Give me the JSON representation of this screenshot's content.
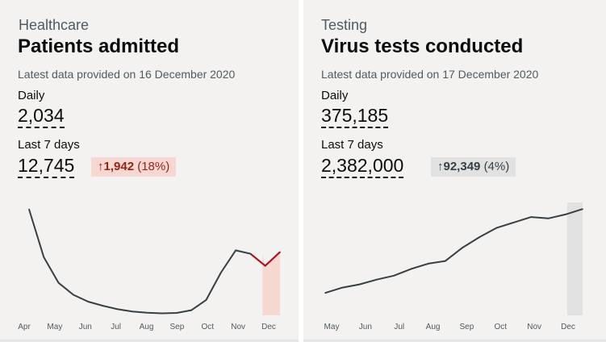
{
  "cards": [
    {
      "category": "Healthcare",
      "title": "Patients admitted",
      "updated": "Latest data provided on 16 December 2020",
      "daily_label": "Daily",
      "daily_value": "2,034",
      "week_label": "Last 7 days",
      "week_value": "12,745",
      "change_arrow": "↑",
      "change_value": "1,942",
      "change_pct": "(18%)",
      "change_color": "#942514",
      "line_color": "#383f43",
      "highlight_line_color": "#b10e1e",
      "highlight_fill": "#f6d7d2"
    },
    {
      "category": "Testing",
      "title": "Virus tests conducted",
      "updated": "Latest data provided on 17 December 2020",
      "daily_label": "Daily",
      "daily_value": "375,185",
      "week_label": "Last 7 days",
      "week_value": "2,382,000",
      "change_arrow": "↑",
      "change_value": "92,349",
      "change_pct": "(4%)",
      "change_color": "#383f43",
      "line_color": "#383f43",
      "highlight_fill": "#e1e1e1"
    }
  ],
  "chart_data": [
    {
      "type": "line",
      "title": "Patients admitted",
      "x_ticks": [
        "Apr",
        "May",
        "Jun",
        "Jul",
        "Aug",
        "Sep",
        "Oct",
        "Nov",
        "Dec"
      ],
      "x": [
        "Apr",
        "Apr",
        "May",
        "May",
        "Jun",
        "Jun",
        "Jul",
        "Jul",
        "Aug",
        "Aug",
        "Sep",
        "Sep",
        "Oct",
        "Oct",
        "Nov",
        "Nov",
        "Dec",
        "Dec"
      ],
      "values": [
        3100,
        1700,
        950,
        600,
        400,
        280,
        180,
        110,
        75,
        60,
        70,
        150,
        450,
        1250,
        1900,
        1800,
        1450,
        1850
      ],
      "ylim": [
        0,
        3300
      ],
      "highlight": "last 7 days"
    },
    {
      "type": "line",
      "title": "Virus tests conducted",
      "x_ticks": [
        "May",
        "Jun",
        "Jul",
        "Aug",
        "Sep",
        "Oct",
        "Nov",
        "Dec"
      ],
      "x": [
        "May",
        "May",
        "Jun",
        "Jun",
        "Jul",
        "Jul",
        "Aug",
        "Aug",
        "Sep",
        "Sep",
        "Oct",
        "Oct",
        "Nov",
        "Nov",
        "Dec",
        "Dec"
      ],
      "values": [
        60000,
        80000,
        92000,
        110000,
        125000,
        150000,
        170000,
        180000,
        230000,
        270000,
        305000,
        325000,
        345000,
        340000,
        355000,
        375185
      ],
      "ylim": [
        0,
        400000
      ],
      "highlight": "last 7 days"
    }
  ]
}
